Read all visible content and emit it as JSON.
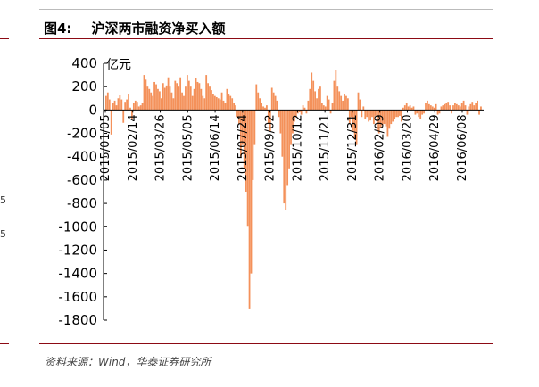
{
  "figure": {
    "label": "图4:",
    "title": "沪深两市融资净买入额"
  },
  "source_note": "资料来源：Wind，华泰证券研究所",
  "left_fragment": {
    "digits": [
      "5",
      "5"
    ]
  },
  "colors": {
    "bar": "#f4915a",
    "title_rule": "#8c0a14",
    "axis": "#000000"
  },
  "chart_data": {
    "type": "bar",
    "title": "沪深两市融资净买入额",
    "unit_label": "亿元",
    "xlabel": "",
    "ylabel": "",
    "ylim": [
      -1800,
      400
    ],
    "yticks": [
      400,
      200,
      0,
      -200,
      -400,
      -600,
      -800,
      -1000,
      -1200,
      -1400,
      -1600,
      -1800
    ],
    "grid": false,
    "legend": "none",
    "x_tick_labels": [
      "2015/01/05",
      "2015/02/14",
      "2015/03/26",
      "2015/05/05",
      "2015/06/14",
      "2015/07/24",
      "2015/09/02",
      "2015/10/12",
      "2015/11/21",
      "2015/12/31",
      "2016/02/09",
      "2016/03/20",
      "2016/04/29",
      "2016/06/08"
    ],
    "series": [
      {
        "values": [
          120,
          150,
          90,
          -210,
          60,
          80,
          40,
          100,
          130,
          90,
          -110,
          70,
          90,
          140,
          20,
          -80,
          60,
          80,
          70,
          30,
          40,
          60,
          300,
          260,
          200,
          180,
          150,
          120,
          240,
          220,
          180,
          160,
          100,
          230,
          190,
          210,
          280,
          200,
          150,
          100,
          250,
          230,
          200,
          280,
          150,
          120,
          200,
          300,
          250,
          200,
          120,
          180,
          270,
          240,
          230,
          180,
          120,
          100,
          300,
          230,
          200,
          170,
          140,
          120,
          110,
          100,
          90,
          150,
          80,
          60,
          180,
          140,
          120,
          100,
          60,
          40,
          -60,
          -120,
          -400,
          -300,
          -500,
          -700,
          -1000,
          -1700,
          -1400,
          -600,
          -300,
          220,
          150,
          100,
          60,
          30,
          20,
          40,
          -120,
          -180,
          190,
          150,
          120,
          80,
          -60,
          -200,
          -400,
          -800,
          -860,
          -650,
          -500,
          -300,
          -200,
          -100,
          -60,
          -30,
          -20,
          -40,
          40,
          20,
          -30,
          80,
          180,
          320,
          250,
          160,
          100,
          180,
          200,
          60,
          40,
          30,
          120,
          90,
          -30,
          60,
          250,
          340,
          200,
          160,
          120,
          80,
          140,
          120,
          100,
          -120,
          -60,
          -180,
          -250,
          -300,
          150,
          90,
          -60,
          30,
          -80,
          -60,
          -100,
          -90,
          -60,
          -120,
          -50,
          -180,
          -200,
          -150,
          -130,
          -120,
          -140,
          -230,
          -160,
          -120,
          -100,
          -80,
          -60,
          -60,
          -50,
          -100,
          20,
          40,
          60,
          30,
          40,
          20,
          30,
          -40,
          -30,
          -60,
          -80,
          -40,
          -30,
          60,
          80,
          50,
          40,
          30,
          20,
          50,
          -40,
          -30,
          30,
          40,
          50,
          60,
          70,
          40,
          -30,
          40,
          60,
          50,
          40,
          30,
          60,
          80,
          40,
          -40,
          30,
          50,
          70,
          40,
          60,
          80,
          -40,
          30
        ]
      }
    ]
  }
}
